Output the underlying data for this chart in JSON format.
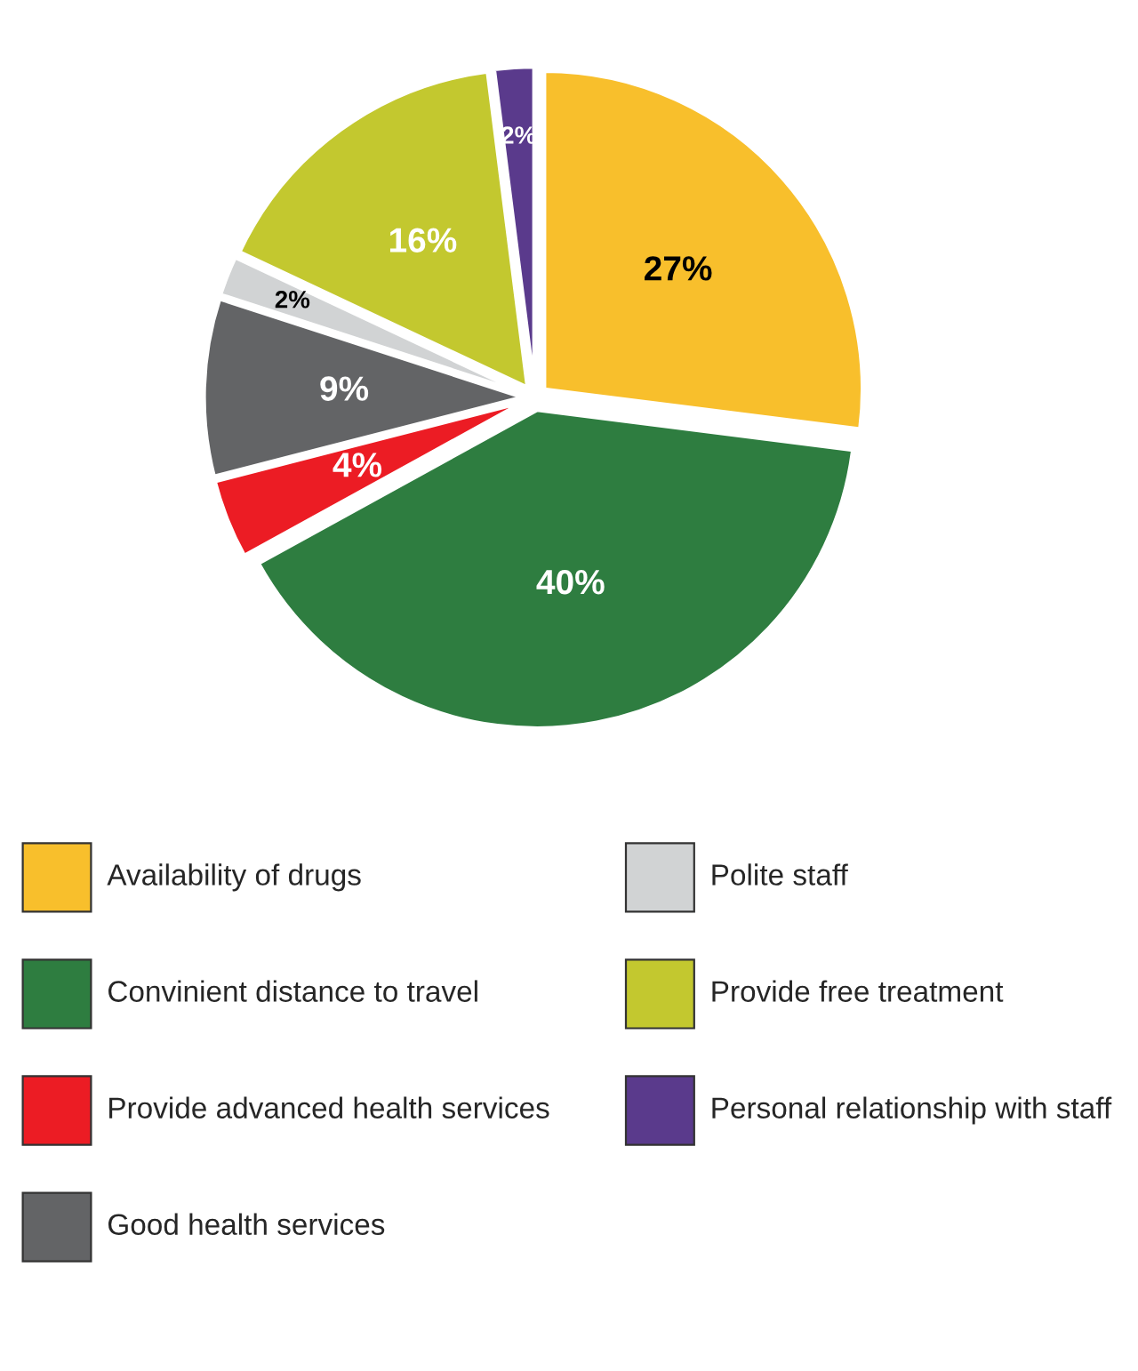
{
  "chart_data": {
    "type": "pie",
    "categories": [
      "Availability of drugs",
      "Convinient distance to travel",
      "Provide advanced health services",
      "Good health services",
      "Polite staff",
      "Provide free treatment",
      "Personal relationship with staff"
    ],
    "values": [
      27,
      40,
      4,
      9,
      2,
      16,
      2
    ],
    "value_labels": [
      "27%",
      "40%",
      "4%",
      "9%",
      "2%",
      "16%",
      "2%"
    ],
    "colors": [
      "#f8bf2c",
      "#2e7d40",
      "#ec1c24",
      "#636466",
      "#d1d3d4",
      "#c3c82f",
      "#5a3a8c"
    ],
    "legend": "bottom"
  }
}
